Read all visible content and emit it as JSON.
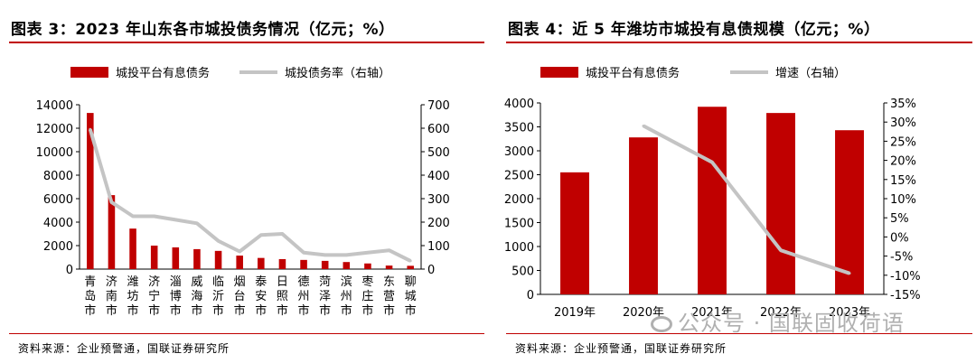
{
  "colors": {
    "bar": "#c00000",
    "line": "#c4c4c4",
    "rule": "#c00000",
    "axis": "#000000"
  },
  "left": {
    "title": "图表 3：2023 年山东各市城投债务情况（亿元；%）",
    "source": "资料来源：企业预警通，国联证券研究所"
  },
  "right": {
    "title": "图表 4：近 5 年潍坊市城投有息债规模（亿元；%）",
    "source": "资料来源：企业预警通，国联证券研究所"
  },
  "watermark": {
    "icon": "wechat-icon",
    "text": "公众号 · 国联固收荷语"
  },
  "chart_data": [
    {
      "type": "bar",
      "title": "图表 3：2023 年山东各市城投债务情况（亿元；%）",
      "categories": [
        "青岛市",
        "济南市",
        "潍坊市",
        "济宁市",
        "淄博市",
        "威海市",
        "临沂市",
        "烟台市",
        "泰安市",
        "日照市",
        "德州市",
        "菏泽市",
        "滨州市",
        "枣庄市",
        "东营市",
        "聊城市"
      ],
      "series": [
        {
          "name": "城投平台有息债务",
          "kind": "bar",
          "axis": "left",
          "values": [
            13300,
            6300,
            3450,
            2000,
            1850,
            1700,
            1550,
            1150,
            950,
            850,
            780,
            700,
            600,
            480,
            300,
            280
          ]
        },
        {
          "name": "城投债务率（右轴）",
          "kind": "line",
          "axis": "right",
          "values": [
            595,
            285,
            225,
            225,
            210,
            195,
            120,
            75,
            145,
            150,
            70,
            60,
            60,
            70,
            80,
            35
          ]
        }
      ],
      "ylim_left": [
        0,
        14000
      ],
      "yticks_left": [
        0,
        2000,
        4000,
        6000,
        8000,
        10000,
        12000,
        14000
      ],
      "ylim_right": [
        0,
        700
      ],
      "yticks_right": [
        0,
        100,
        200,
        300,
        400,
        500,
        600,
        700
      ],
      "legend": "top"
    },
    {
      "type": "bar",
      "title": "图表 4：近 5 年潍坊市城投有息债规模（亿元；%）",
      "categories": [
        "2019年",
        "2020年",
        "2021年",
        "2022年",
        "2023年"
      ],
      "series": [
        {
          "name": "城投平台有息债务",
          "kind": "bar",
          "axis": "left",
          "values": [
            2550,
            3280,
            3920,
            3790,
            3430
          ]
        },
        {
          "name": "增速（右轴）",
          "kind": "line",
          "axis": "right",
          "values": [
            null,
            29,
            19.5,
            -3.5,
            -9.5
          ]
        }
      ],
      "ylim_left": [
        0,
        4000
      ],
      "yticks_left": [
        0,
        500,
        1000,
        1500,
        2000,
        2500,
        3000,
        3500,
        4000
      ],
      "ylim_right": [
        -15,
        35
      ],
      "yticks_right": [
        -15,
        -10,
        -5,
        0,
        5,
        10,
        15,
        20,
        25,
        30,
        35
      ],
      "ytick_suffix_right": "%",
      "legend": "top"
    }
  ]
}
